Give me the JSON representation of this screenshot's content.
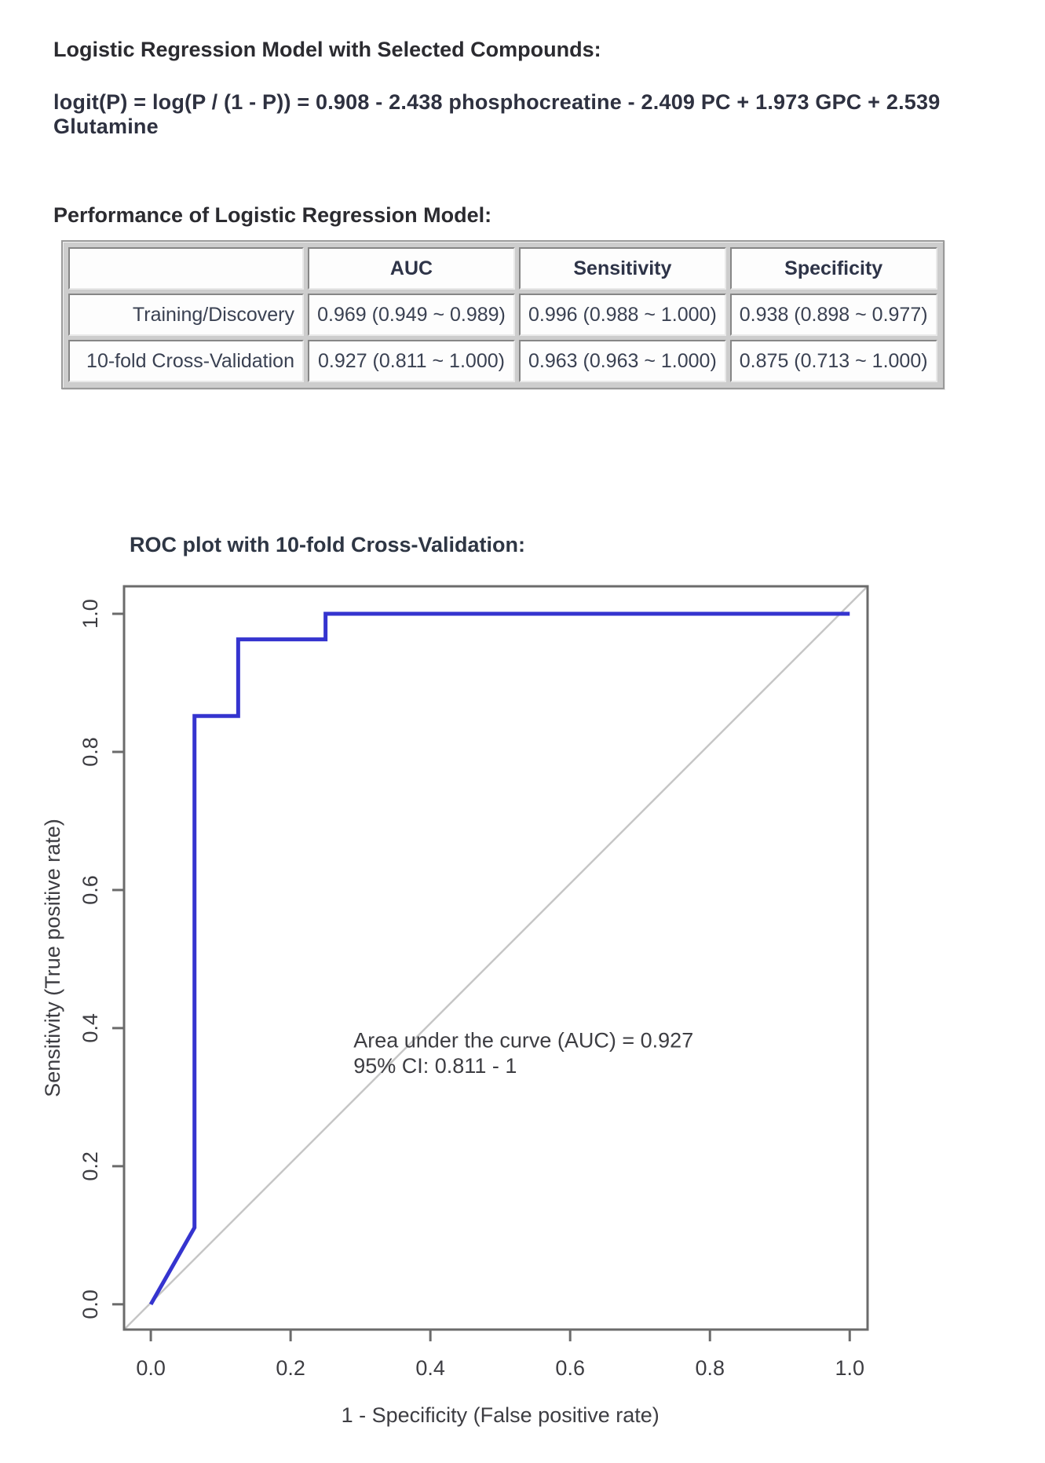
{
  "page": {
    "model_heading": "Logistic Regression Model with Selected Compounds:",
    "equation": "logit(P) = log(P / (1 - P)) = 0.908 - 2.438 phosphocreatine - 2.409 PC + 1.973 GPC + 2.539 Glutamine",
    "performance_heading": "Performance of Logistic Regression Model:"
  },
  "table": {
    "columns": [
      "",
      "AUC",
      "Sensitivity",
      "Specificity"
    ],
    "rows": [
      {
        "label": "Training/Discovery",
        "values": [
          "0.969 (0.949 ~ 0.989)",
          "0.996 (0.988 ~ 1.000)",
          "0.938 (0.898 ~ 0.977)"
        ]
      },
      {
        "label": "10-fold Cross-Validation",
        "values": [
          "0.927 (0.811 ~ 1.000)",
          "0.963 (0.963 ~ 1.000)",
          "0.875 (0.713 ~ 1.000)"
        ]
      }
    ]
  },
  "chart_data": {
    "type": "line",
    "title": "ROC plot with 10-fold Cross-Validation:",
    "xlabel": "1 - Specificity (False positive rate)",
    "ylabel": "Sensitivity (True positive rate)",
    "xlim": [
      0,
      1
    ],
    "ylim": [
      0,
      1
    ],
    "grid": false,
    "legend": "none",
    "x_tick_values": [
      0,
      0.2,
      0.4,
      0.6,
      0.8,
      1.0
    ],
    "x_tick_labels": [
      "0.0",
      "0.2",
      "0.4",
      "0.6",
      "0.8",
      "1.0"
    ],
    "y_tick_values": [
      0,
      0.2,
      0.4,
      0.6,
      0.8,
      1.0
    ],
    "y_tick_labels": [
      "0.0",
      "0.2",
      "0.4",
      "0.6",
      "0.8",
      "1.0"
    ],
    "series": [
      {
        "name": "ROC curve (10-fold cross-validation)",
        "color": "#3534cf",
        "width": 5,
        "x": [
          0,
          0.0625,
          0.0625,
          0.125,
          0.125,
          0.25,
          0.25,
          1.0
        ],
        "y": [
          0,
          0.111,
          0.852,
          0.852,
          0.963,
          0.963,
          1.0,
          1.0
        ]
      }
    ],
    "reference_diagonal": {
      "present": true,
      "color": "#c6c6c6"
    },
    "annotation": {
      "line1": "Area under the curve (AUC) = 0.927",
      "line2": "95% CI: 0.811 - 1",
      "x": 0.29,
      "y_line1": 0.372,
      "y_line2": 0.335
    }
  }
}
